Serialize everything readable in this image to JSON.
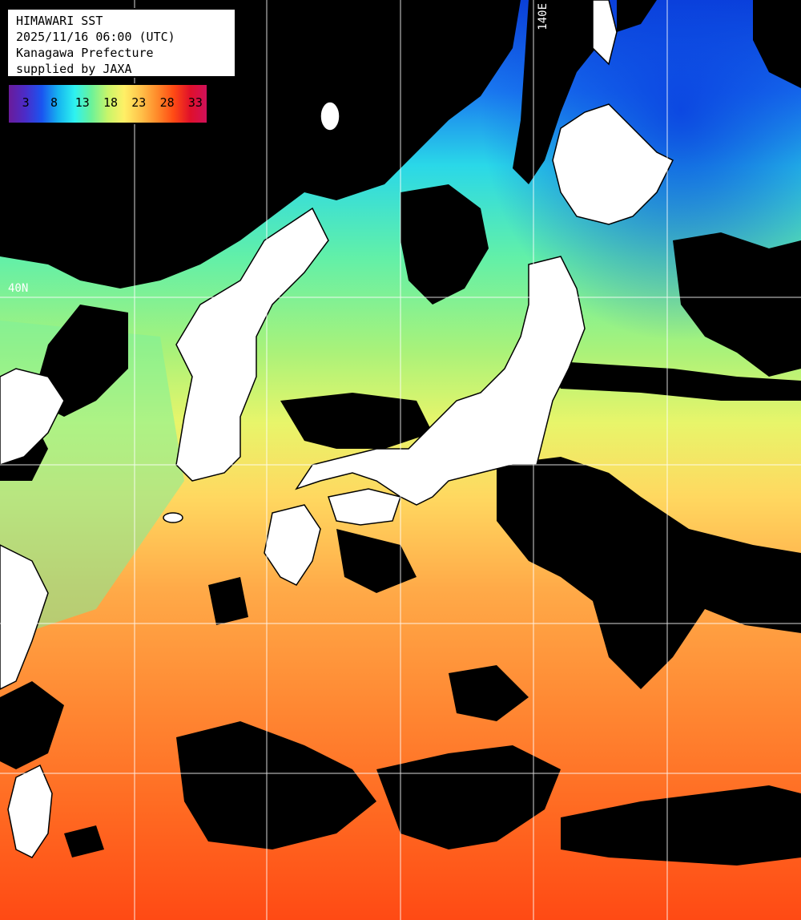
{
  "title": {
    "line1": "HIMAWARI SST",
    "line2": "2025/11/16 06:00 (UTC)",
    "line3": "Kanagawa Prefecture",
    "line4": "supplied by JAXA"
  },
  "colorbar": {
    "ticks": [
      "3",
      "8",
      "13",
      "18",
      "23",
      "28",
      "33"
    ],
    "range": [
      0,
      35
    ],
    "unit": "",
    "stops": [
      "#6a1b9a",
      "#4b2cc8",
      "#1a54f0",
      "#16b4f0",
      "#2ef2f0",
      "#6af29a",
      "#c8f56a",
      "#fff066",
      "#ffc24a",
      "#ff8a2a",
      "#ff4a14",
      "#e0102a",
      "#d0105a"
    ]
  },
  "grid_labels": {
    "lat": "40N",
    "lon": "140E"
  },
  "colors": {
    "land": "#ffffff",
    "no_data": "#000000",
    "grid": "#ffffff"
  }
}
